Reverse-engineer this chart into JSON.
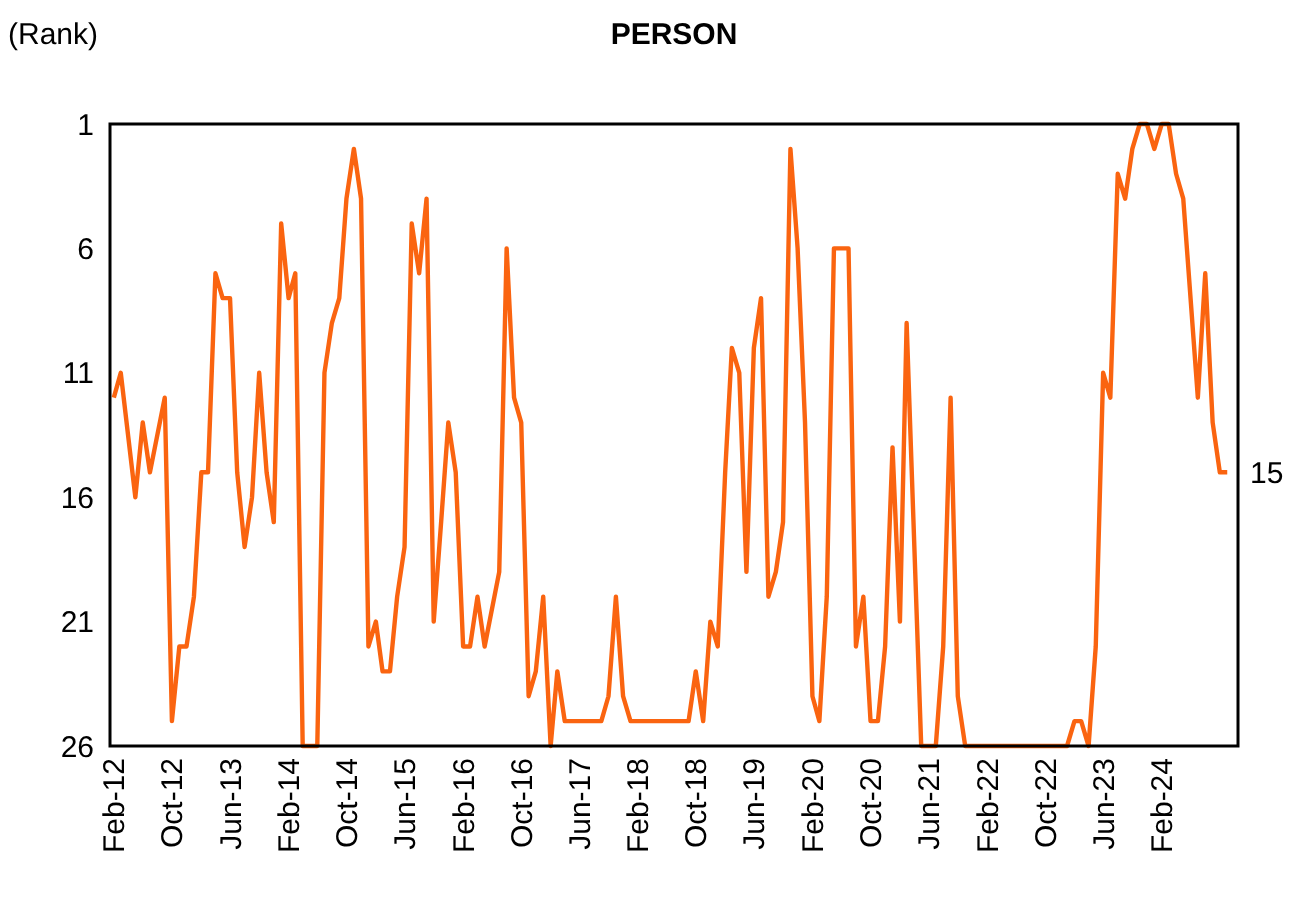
{
  "chart_data": {
    "type": "line",
    "title": "PERSON",
    "ylabel": "(Rank)",
    "x": [
      "2012-02",
      "2012-03",
      "2012-05",
      "2012-06",
      "2012-07",
      "2012-09",
      "2012-10",
      "2012-11",
      "2012-12",
      "2013-01",
      "2013-02",
      "2013-03",
      "2013-04",
      "2013-05",
      "2013-06",
      "2013-07",
      "2013-08",
      "2013-09",
      "2013-10",
      "2013-11",
      "2013-12",
      "2014-01",
      "2014-02",
      "2014-03",
      "2014-04",
      "2014-06",
      "2014-07",
      "2014-08",
      "2014-09",
      "2014-10",
      "2014-11",
      "2014-12",
      "2015-01",
      "2015-02",
      "2015-03",
      "2015-04",
      "2015-05",
      "2015-06",
      "2015-07",
      "2015-08",
      "2015-09",
      "2015-10",
      "2015-11",
      "2015-12",
      "2016-01",
      "2016-02",
      "2016-03",
      "2016-04",
      "2016-05",
      "2016-07",
      "2016-08",
      "2016-09",
      "2016-10",
      "2016-11",
      "2016-12",
      "2017-01",
      "2017-02",
      "2017-03",
      "2017-04",
      "2017-09",
      "2017-10",
      "2017-11",
      "2017-12",
      "2018-01",
      "2018-09",
      "2018-10",
      "2018-11",
      "2018-12",
      "2019-01",
      "2019-02",
      "2019-03",
      "2019-04",
      "2019-05",
      "2019-06",
      "2019-07",
      "2019-08",
      "2019-09",
      "2019-10",
      "2019-11",
      "2019-12",
      "2020-01",
      "2020-02",
      "2020-03",
      "2020-04",
      "2020-05",
      "2020-07",
      "2020-08",
      "2020-09",
      "2020-10",
      "2020-11",
      "2020-12",
      "2021-01",
      "2021-02",
      "2021-03",
      "2021-05",
      "2021-07",
      "2021-08",
      "2021-09",
      "2021-10",
      "2021-11",
      "2023-01",
      "2023-02",
      "2023-03",
      "2023-04",
      "2023-05",
      "2023-06",
      "2023-07",
      "2023-08",
      "2023-09",
      "2023-10",
      "2023-11",
      "2023-12",
      "2024-01",
      "2024-02",
      "2024-03",
      "2024-04",
      "2024-05",
      "2024-07",
      "2024-08",
      "2024-09",
      "2024-10",
      "2024-11"
    ],
    "series": [
      {
        "color": "#fa6410",
        "values": [
          12,
          11,
          16,
          13,
          15,
          12,
          25,
          22,
          22,
          20,
          15,
          15,
          7,
          8,
          8,
          15,
          18,
          16,
          11,
          15,
          17,
          5,
          8,
          7,
          26,
          26,
          11,
          9,
          8,
          4,
          2,
          4,
          22,
          21,
          23,
          23,
          20,
          18,
          5,
          7,
          4,
          21,
          17,
          13,
          15,
          22,
          22,
          20,
          22,
          19,
          6,
          12,
          13,
          24,
          23,
          20,
          26,
          23,
          25,
          25,
          24,
          20,
          24,
          25,
          25,
          23,
          25,
          21,
          22,
          15,
          10,
          11,
          19,
          10,
          8,
          20,
          19,
          17,
          2,
          6,
          13,
          24,
          25,
          20,
          6,
          6,
          22,
          20,
          25,
          25,
          22,
          14,
          21,
          9,
          26,
          26,
          22,
          12,
          24,
          26,
          26,
          25,
          25,
          26,
          22,
          11,
          12,
          3,
          4,
          2,
          1,
          1,
          2,
          1,
          1,
          3,
          4,
          12,
          7,
          13,
          15,
          15
        ]
      }
    ],
    "xlim": [
      "2012-01-16",
      "2024-12-16"
    ],
    "xticks": [
      {
        "value": "2012-02",
        "label": "Feb-12"
      },
      {
        "value": "2012-10",
        "label": "Oct-12"
      },
      {
        "value": "2013-06",
        "label": "Jun-13"
      },
      {
        "value": "2014-02",
        "label": "Feb-14"
      },
      {
        "value": "2014-10",
        "label": "Oct-14"
      },
      {
        "value": "2015-06",
        "label": "Jun-15"
      },
      {
        "value": "2016-02",
        "label": "Feb-16"
      },
      {
        "value": "2016-10",
        "label": "Oct-16"
      },
      {
        "value": "2017-06",
        "label": "Jun-17"
      },
      {
        "value": "2018-02",
        "label": "Feb-18"
      },
      {
        "value": "2018-10",
        "label": "Oct-18"
      },
      {
        "value": "2019-06",
        "label": "Jun-19"
      },
      {
        "value": "2020-02",
        "label": "Feb-20"
      },
      {
        "value": "2020-10",
        "label": "Oct-20"
      },
      {
        "value": "2021-06",
        "label": "Jun-21"
      },
      {
        "value": "2022-02",
        "label": "Feb-22"
      },
      {
        "value": "2022-10",
        "label": "Oct-22"
      },
      {
        "value": "2023-06",
        "label": "Jun-23"
      },
      {
        "value": "2024-02",
        "label": "Feb-24"
      }
    ],
    "ylim": [
      26,
      1
    ],
    "yticks": [
      1,
      6,
      11,
      16,
      21,
      26
    ],
    "annotations": [
      {
        "text": "15",
        "x": "2024-11",
        "y": 15
      }
    ]
  }
}
